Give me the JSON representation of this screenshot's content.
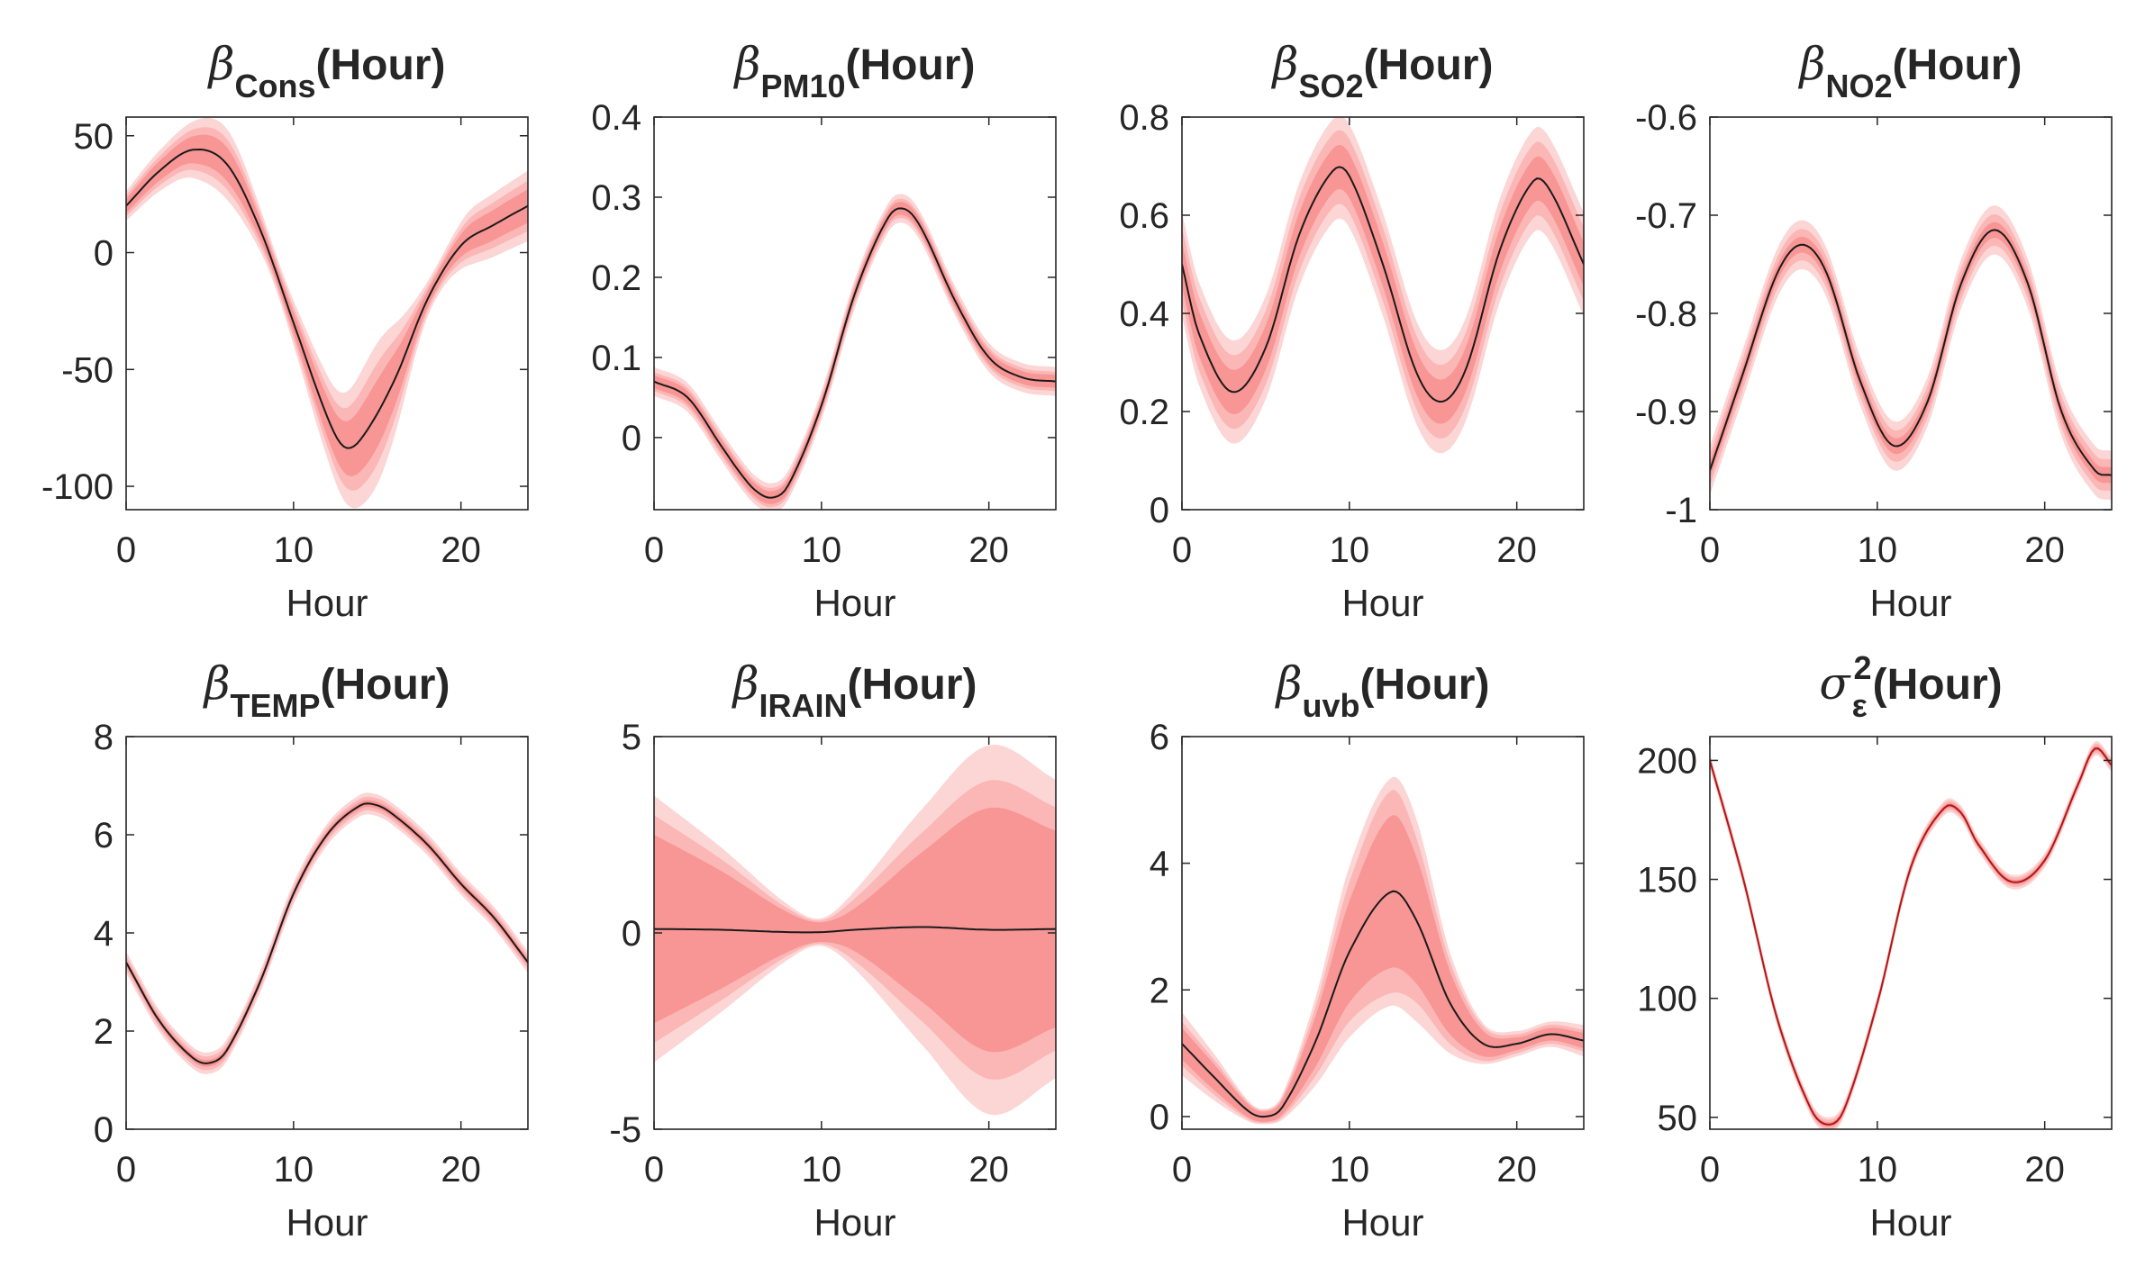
{
  "colors": {
    "band_outer": "#fcd5d5",
    "band_mid": "#fbb6b6",
    "band_inner": "#f89595",
    "line": "#1a1a1a",
    "line_sigma": "#b01818",
    "axes": "#262626"
  },
  "chart_data": [
    {
      "type": "line",
      "title_symbol": "β",
      "title_subscript": "Cons",
      "title_suffix": "(Hour)",
      "xlabel": "Hour",
      "xlim": [
        0,
        24
      ],
      "ylim": [
        -110,
        58
      ],
      "xticks": [
        0,
        10,
        20
      ],
      "yticks": [
        -100,
        -50,
        0,
        50
      ],
      "x": [
        0,
        2,
        4,
        6,
        8,
        10,
        12,
        13,
        14,
        16,
        18,
        20,
        22,
        24
      ],
      "y": [
        20,
        35,
        44,
        38,
        10,
        -30,
        -70,
        -83,
        -80,
        -55,
        -20,
        3,
        12,
        20
      ],
      "band_half_widths": [
        5,
        8,
        12,
        6,
        14,
        24,
        6,
        10,
        12
      ]
    },
    {
      "type": "line",
      "title_symbol": "β",
      "title_subscript": "PM10",
      "title_suffix": "(Hour)",
      "xlabel": "Hour",
      "xlim": [
        0,
        24
      ],
      "ylim": [
        -0.09,
        0.4
      ],
      "xticks": [
        0,
        10,
        20
      ],
      "yticks": [
        0,
        0.1,
        0.2,
        0.3,
        0.4
      ],
      "x": [
        0,
        2,
        4,
        5,
        6,
        7,
        8,
        10,
        12,
        14,
        15,
        16,
        18,
        20,
        22,
        24
      ],
      "y": [
        0.07,
        0.05,
        -0.01,
        -0.04,
        -0.065,
        -0.075,
        -0.06,
        0.04,
        0.18,
        0.275,
        0.285,
        0.26,
        0.17,
        0.1,
        0.075,
        0.07
      ],
      "band_half_widths": [
        0.008,
        0.012,
        0.018
      ]
    },
    {
      "type": "line",
      "title_symbol": "β",
      "title_subscript": "SO2",
      "title_suffix": "(Hour)",
      "xlabel": "Hour",
      "xlim": [
        0,
        24
      ],
      "ylim": [
        0,
        0.8
      ],
      "xticks": [
        0,
        10,
        20
      ],
      "yticks": [
        0,
        0.2,
        0.4,
        0.6,
        0.8
      ],
      "x": [
        0,
        1,
        3,
        5,
        7,
        9,
        10,
        12,
        14,
        15.5,
        17,
        19,
        21,
        22,
        24
      ],
      "y": [
        0.5,
        0.36,
        0.24,
        0.33,
        0.56,
        0.69,
        0.68,
        0.5,
        0.28,
        0.22,
        0.29,
        0.53,
        0.67,
        0.65,
        0.5
      ],
      "band_half_widths": [
        0.045,
        0.075,
        0.105
      ]
    },
    {
      "type": "line",
      "title_symbol": "β",
      "title_subscript": "NO2",
      "title_suffix": "(Hour)",
      "xlabel": "Hour",
      "xlim": [
        0,
        24
      ],
      "ylim": [
        -1,
        -0.6
      ],
      "xticks": [
        0,
        10,
        20
      ],
      "yticks": [
        -1,
        -0.9,
        -0.8,
        -0.7,
        -0.6
      ],
      "x": [
        0,
        2,
        4,
        5.5,
        7,
        9,
        11,
        13,
        15,
        17,
        19,
        21,
        23,
        24
      ],
      "y": [
        -0.96,
        -0.86,
        -0.76,
        -0.73,
        -0.76,
        -0.87,
        -0.935,
        -0.89,
        -0.77,
        -0.715,
        -0.77,
        -0.9,
        -0.96,
        -0.965
      ],
      "band_half_widths": [
        0.008,
        0.016,
        0.025
      ]
    },
    {
      "type": "line",
      "title_symbol": "β",
      "title_subscript": "TEMP",
      "title_suffix": "(Hour)",
      "xlabel": "Hour",
      "xlim": [
        0,
        24
      ],
      "ylim": [
        0,
        8
      ],
      "xticks": [
        0,
        10,
        20
      ],
      "yticks": [
        0,
        2,
        4,
        6,
        8
      ],
      "x": [
        0,
        2,
        4,
        5,
        6,
        8,
        10,
        12,
        14,
        15,
        16,
        18,
        20,
        22,
        24
      ],
      "y": [
        3.4,
        2.2,
        1.45,
        1.35,
        1.6,
        3.0,
        4.8,
        6.0,
        6.6,
        6.6,
        6.4,
        5.8,
        5.0,
        4.3,
        3.4
      ],
      "band_half_widths": [
        0.07,
        0.14,
        0.22
      ]
    },
    {
      "type": "line",
      "title_symbol": "β",
      "title_subscript": "IRAIN",
      "title_suffix": "(Hour)",
      "xlabel": "Hour",
      "xlim": [
        0,
        24
      ],
      "ylim": [
        -5,
        5
      ],
      "xticks": [
        0,
        10,
        20
      ],
      "yticks": [
        -5,
        0,
        5
      ],
      "x": [
        0,
        4,
        8,
        10,
        12,
        16,
        20,
        24
      ],
      "y": [
        0.1,
        0.08,
        0.02,
        0.02,
        0.08,
        0.15,
        0.08,
        0.1
      ],
      "band_half_widths": [
        [
          2.4,
          1.5,
          0.5,
          0.25,
          0.55,
          1.9,
          3.1,
          2.5
        ],
        [
          2.9,
          1.8,
          0.6,
          0.3,
          0.8,
          2.4,
          3.8,
          3.1
        ],
        [
          3.4,
          2.1,
          0.7,
          0.35,
          1.0,
          3.0,
          4.7,
          3.8
        ]
      ]
    },
    {
      "type": "line",
      "title_symbol": "β",
      "title_subscript": "uvb",
      "title_suffix": "(Hour)",
      "xlabel": "Hour",
      "xlim": [
        0,
        24
      ],
      "ylim": [
        -0.2,
        6
      ],
      "xticks": [
        0,
        10,
        20
      ],
      "yticks": [
        0,
        2,
        4,
        6
      ],
      "x": [
        0,
        2,
        4,
        5,
        6,
        8,
        10,
        12.5,
        14,
        16,
        18,
        20,
        22,
        24
      ],
      "y": [
        1.15,
        0.6,
        0.08,
        0.0,
        0.15,
        1.2,
        2.6,
        3.55,
        3.1,
        1.8,
        1.15,
        1.15,
        1.3,
        1.2
      ],
      "band_half_widths": [
        [
          0.25,
          0.2,
          0.1,
          0.08,
          0.12,
          0.4,
          0.8,
          1.2,
          1.0,
          0.5,
          0.2,
          0.1,
          0.1,
          0.12
        ],
        [
          0.35,
          0.27,
          0.13,
          0.1,
          0.16,
          0.55,
          1.1,
          1.6,
          1.3,
          0.65,
          0.27,
          0.15,
          0.15,
          0.17
        ],
        [
          0.5,
          0.36,
          0.16,
          0.12,
          0.2,
          0.7,
          1.35,
          1.8,
          1.6,
          0.8,
          0.32,
          0.2,
          0.2,
          0.25
        ]
      ]
    },
    {
      "type": "line",
      "title_symbol": "σ",
      "title_subscript": "ε",
      "title_superscript": "2",
      "title_suffix": "(Hour)",
      "xlabel": "Hour",
      "xlim": [
        0,
        24
      ],
      "ylim": [
        45,
        210
      ],
      "xticks": [
        0,
        10,
        20
      ],
      "yticks": [
        50,
        100,
        150,
        200
      ],
      "x": [
        0,
        2,
        4,
        6,
        7,
        8,
        10,
        12,
        14,
        15,
        16,
        18,
        20,
        22,
        23,
        24
      ],
      "y": [
        200,
        150,
        92,
        54,
        47,
        53,
        98,
        155,
        180,
        178,
        165,
        149,
        158,
        190,
        205,
        198
      ],
      "band_half_widths": [
        1,
        2,
        3
      ]
    }
  ]
}
